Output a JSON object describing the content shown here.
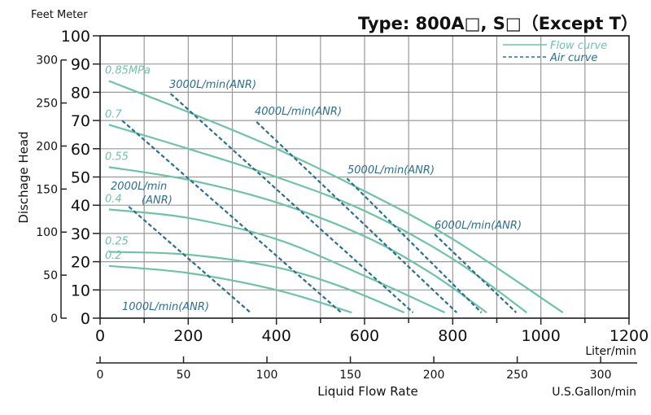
{
  "chart_data": {
    "type": "line",
    "title": "Type: 800A□, S□（Except T）",
    "ylabel": "Dischage Head",
    "yunits_label": "Feet Meter",
    "xlabel": "Liquid Flow Rate",
    "x_unit_primary": "Liter/min",
    "x_unit_secondary": "U.S.Gallon/min",
    "xlim": [
      0,
      1200
    ],
    "ylim": [
      0,
      100
    ],
    "x_ticks": [
      "0",
      "200",
      "400",
      "600",
      "800",
      "1000",
      "1200"
    ],
    "y_ticks_meter": [
      "0",
      "10",
      "20",
      "30",
      "40",
      "50",
      "60",
      "70",
      "80",
      "90",
      "100"
    ],
    "y_ticks_feet": [
      "0",
      "50",
      "100",
      "150",
      "200",
      "250",
      "300"
    ],
    "x_ticks_gallon": [
      "0",
      "50",
      "100",
      "150",
      "200",
      "250",
      "300"
    ],
    "grid": true,
    "legend": {
      "position": "top-right",
      "flow": "Flow curve",
      "air": "Air curve"
    },
    "colors": {
      "flow": "#6cc4a4",
      "air": "#2a6f8f"
    },
    "flow_series": [
      {
        "name": "0.85MPa",
        "points": [
          [
            20,
            84
          ],
          [
            200,
            73
          ],
          [
            400,
            60
          ],
          [
            600,
            45
          ],
          [
            800,
            28
          ],
          [
            1050,
            2
          ]
        ]
      },
      {
        "name": "0.7",
        "points": [
          [
            20,
            68.5
          ],
          [
            200,
            60
          ],
          [
            400,
            50
          ],
          [
            600,
            38
          ],
          [
            800,
            21
          ],
          [
            968,
            2
          ]
        ]
      },
      {
        "name": "0.55",
        "points": [
          [
            20,
            53.5
          ],
          [
            200,
            49
          ],
          [
            400,
            41
          ],
          [
            600,
            29
          ],
          [
            750,
            16
          ],
          [
            877,
            2
          ]
        ]
      },
      {
        "name": "0.4",
        "points": [
          [
            20,
            38.5
          ],
          [
            200,
            35.5
          ],
          [
            400,
            28
          ],
          [
            600,
            15
          ],
          [
            782,
            2
          ]
        ]
      },
      {
        "name": "0.25",
        "points": [
          [
            20,
            23.5
          ],
          [
            200,
            22.5
          ],
          [
            400,
            18
          ],
          [
            550,
            11
          ],
          [
            690,
            2
          ]
        ]
      },
      {
        "name": "0.2",
        "points": [
          [
            20,
            18.5
          ],
          [
            200,
            16
          ],
          [
            400,
            10
          ],
          [
            571,
            2
          ]
        ]
      }
    ],
    "air_series": [
      {
        "name": "1000L/min(ANR)",
        "points": [
          [
            65,
            39.5
          ],
          [
            341,
            2
          ]
        ]
      },
      {
        "name": "2000L/min(ANR)",
        "label_line1": "2000L/min",
        "label_line2": "(ANR)",
        "points": [
          [
            50,
            70
          ],
          [
            547,
            2
          ]
        ]
      },
      {
        "name": "3000L/min(ANR)",
        "points": [
          [
            160,
            79.5
          ],
          [
            710,
            2
          ]
        ]
      },
      {
        "name": "4000L/min(ANR)",
        "points": [
          [
            355,
            69.5
          ],
          [
            809,
            2
          ]
        ]
      },
      {
        "name": "5000L/min(ANR)",
        "points": [
          [
            560,
            49.5
          ],
          [
            865,
            2
          ]
        ]
      },
      {
        "name": "6000L/min(ANR)",
        "points": [
          [
            759,
            29.7
          ],
          [
            944,
            2
          ]
        ]
      }
    ]
  }
}
